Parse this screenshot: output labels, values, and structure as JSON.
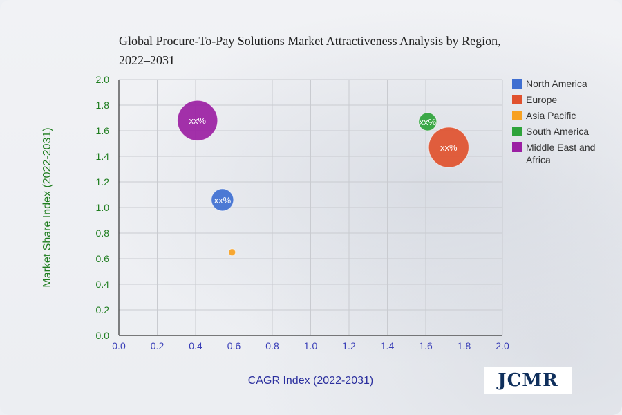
{
  "chart_data": {
    "type": "scatter",
    "subtype": "bubble",
    "title": "Global Procure-To-Pay Solutions Market Attractiveness Analysis by Region, 2022–2031",
    "xlabel": "CAGR Index (2022-2031)",
    "ylabel": "Market Share Index (2022-2031)",
    "xlim": [
      0,
      2.0
    ],
    "ylim": [
      0,
      2.0
    ],
    "x_ticks": [
      "0.0",
      "0.2",
      "0.4",
      "0.6",
      "0.8",
      "1.0",
      "1.2",
      "1.4",
      "1.6",
      "1.8",
      "2.0"
    ],
    "y_ticks": [
      "0.0",
      "0.2",
      "0.4",
      "0.6",
      "0.8",
      "1.0",
      "1.2",
      "1.4",
      "1.6",
      "1.8",
      "2.0"
    ],
    "grid": true,
    "legend_position": "right",
    "series": [
      {
        "name": "North America",
        "color": "#3f6fd1",
        "x": 0.54,
        "y": 1.06,
        "size": 16,
        "label": "xx%"
      },
      {
        "name": "Europe",
        "color": "#e0512e",
        "x": 1.72,
        "y": 1.47,
        "size": 29,
        "label": "xx%"
      },
      {
        "name": "Asia Pacific",
        "color": "#f7a122",
        "x": 0.59,
        "y": 0.65,
        "size": 5,
        "label": ""
      },
      {
        "name": "South America",
        "color": "#2ea33a",
        "x": 1.61,
        "y": 1.67,
        "size": 13,
        "label": "xx%"
      },
      {
        "name": "Middle East and Africa",
        "color": "#9b1fa3",
        "x": 0.41,
        "y": 1.68,
        "size": 29,
        "label": "xx%"
      }
    ]
  },
  "logo": {
    "text": "JCMR"
  }
}
